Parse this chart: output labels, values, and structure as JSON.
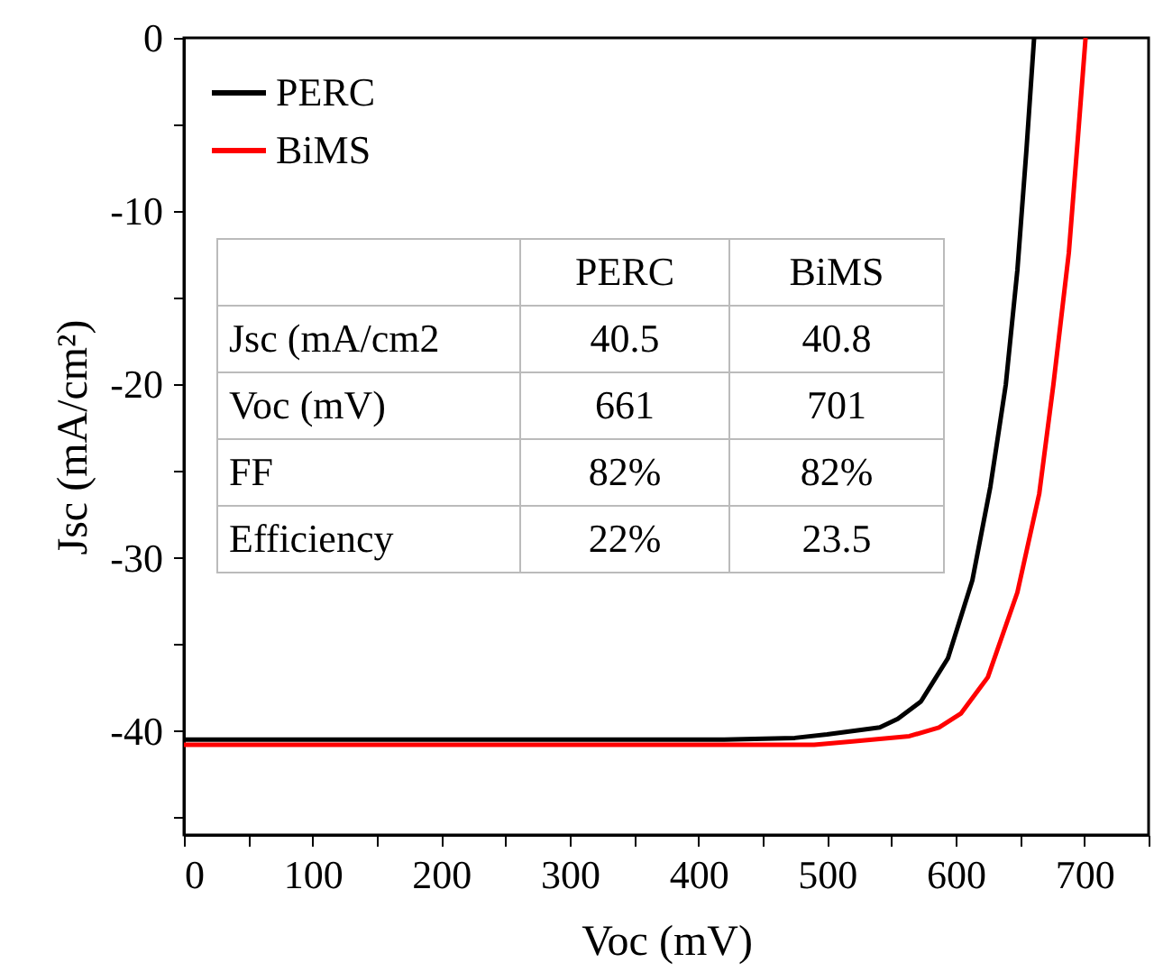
{
  "chart_data": {
    "type": "line",
    "xlabel": "Voc (mV)",
    "ylabel": "Jsc (mA/cm²)",
    "xlim": [
      0,
      750
    ],
    "ylim": [
      -46,
      0
    ],
    "xticks": [
      0,
      {
        "value": 50,
        "label": null
      },
      100,
      {
        "value": 150,
        "label": null
      },
      200,
      {
        "value": 250,
        "label": null
      },
      300,
      {
        "value": 350,
        "label": null
      },
      400,
      {
        "value": 450,
        "label": null
      },
      500,
      {
        "value": 550,
        "label": null
      },
      600,
      {
        "value": 650,
        "label": null
      },
      700,
      {
        "value": 750,
        "label": null
      }
    ],
    "yticks": [
      0,
      {
        "value": -5,
        "label": null
      },
      -10,
      {
        "value": -15,
        "label": null
      },
      -20,
      {
        "value": -25,
        "label": null
      },
      -30,
      {
        "value": -35,
        "label": null
      },
      -40,
      {
        "value": -45,
        "label": null
      }
    ],
    "grid": false,
    "legend": "top left",
    "line_style": "solid",
    "marker": "none",
    "series": [
      {
        "name": "PERC",
        "color": "#000000",
        "x": [
          0,
          200,
          420,
          475,
          500,
          541,
          555,
          573,
          594,
          613,
          627,
          639,
          648,
          655,
          661
        ],
        "values": [
          -40.5,
          -40.5,
          -40.5,
          -40.4,
          -40.2,
          -39.8,
          -39.3,
          -38.3,
          -35.8,
          -31.3,
          -25.9,
          -20.0,
          -13.4,
          -6.5,
          0
        ]
      },
      {
        "name": "BiMS",
        "color": "#ff0000",
        "x": [
          0,
          200,
          490,
          520,
          564,
          587,
          604,
          625,
          648,
          665,
          676,
          688,
          695,
          701
        ],
        "values": [
          -40.8,
          -40.8,
          -40.8,
          -40.6,
          -40.3,
          -39.8,
          -39.0,
          -36.9,
          -32.0,
          -26.3,
          -20.0,
          -12.4,
          -5.8,
          0
        ]
      }
    ],
    "annotations": [
      "PERC",
      "BiMS",
      "Jsc (mA/cm2",
      "40.5",
      "40.8",
      "Voc (mV)",
      "661",
      "701",
      "FF",
      "82%",
      "82%",
      "Efficiency",
      "22%",
      "23.5"
    ]
  }
}
